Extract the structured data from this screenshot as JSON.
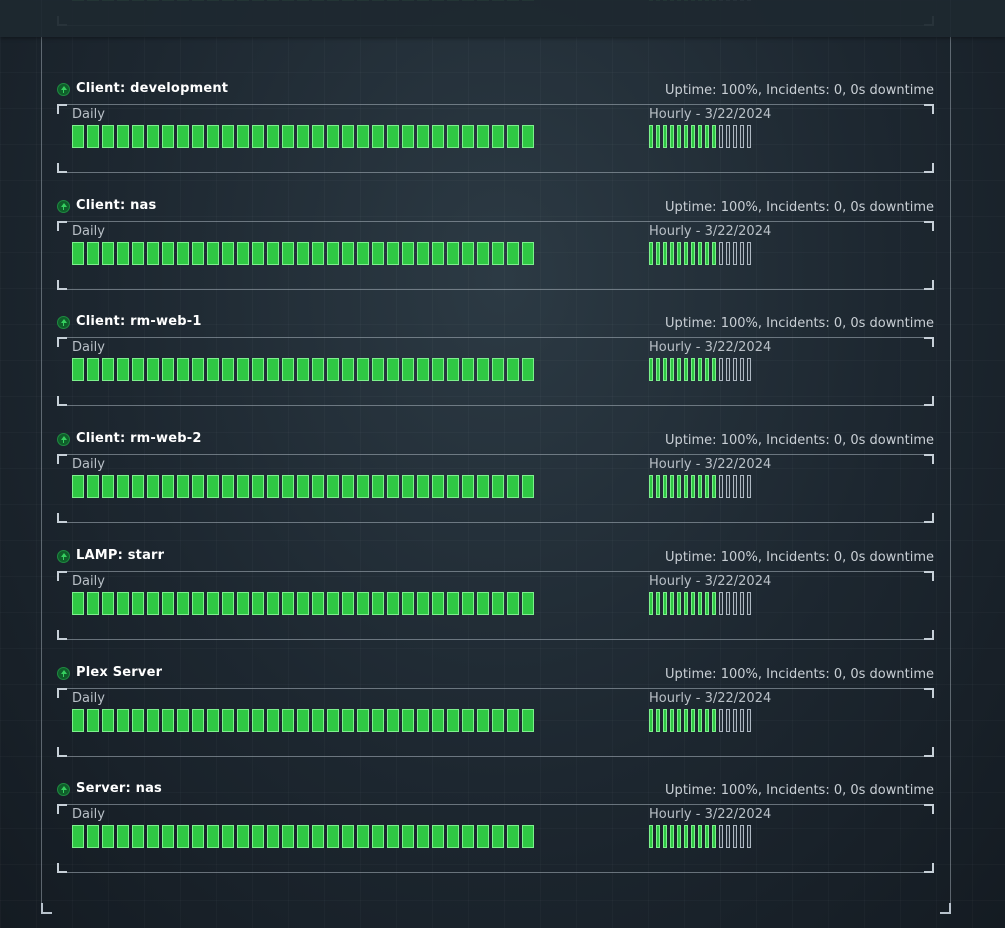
{
  "colors": {
    "up": "#2fc844",
    "pending": "#2a343d",
    "accent": "#37d060"
  },
  "daily_label": "Daily",
  "hourly_label": "Hourly - 3/22/2024",
  "daily_bar_count": 31,
  "hourly_bars": {
    "up": 10,
    "pending": 5
  },
  "monitors": [
    {
      "name": "",
      "stats": ""
    },
    {
      "name": "Client: development",
      "stats": "Uptime: 100%, Incidents: 0, 0s downtime"
    },
    {
      "name": "Client: nas",
      "stats": "Uptime: 100%, Incidents: 0, 0s downtime"
    },
    {
      "name": "Client: rm-web-1",
      "stats": "Uptime: 100%, Incidents: 0, 0s downtime"
    },
    {
      "name": "Client: rm-web-2",
      "stats": "Uptime: 100%, Incidents: 0, 0s downtime"
    },
    {
      "name": "LAMP: starr",
      "stats": "Uptime: 100%, Incidents: 0, 0s downtime"
    },
    {
      "name": "Plex Server",
      "stats": "Uptime: 100%, Incidents: 0, 0s downtime"
    },
    {
      "name": "Server: nas",
      "stats": "Uptime: 100%, Incidents: 0, 0s downtime"
    }
  ]
}
